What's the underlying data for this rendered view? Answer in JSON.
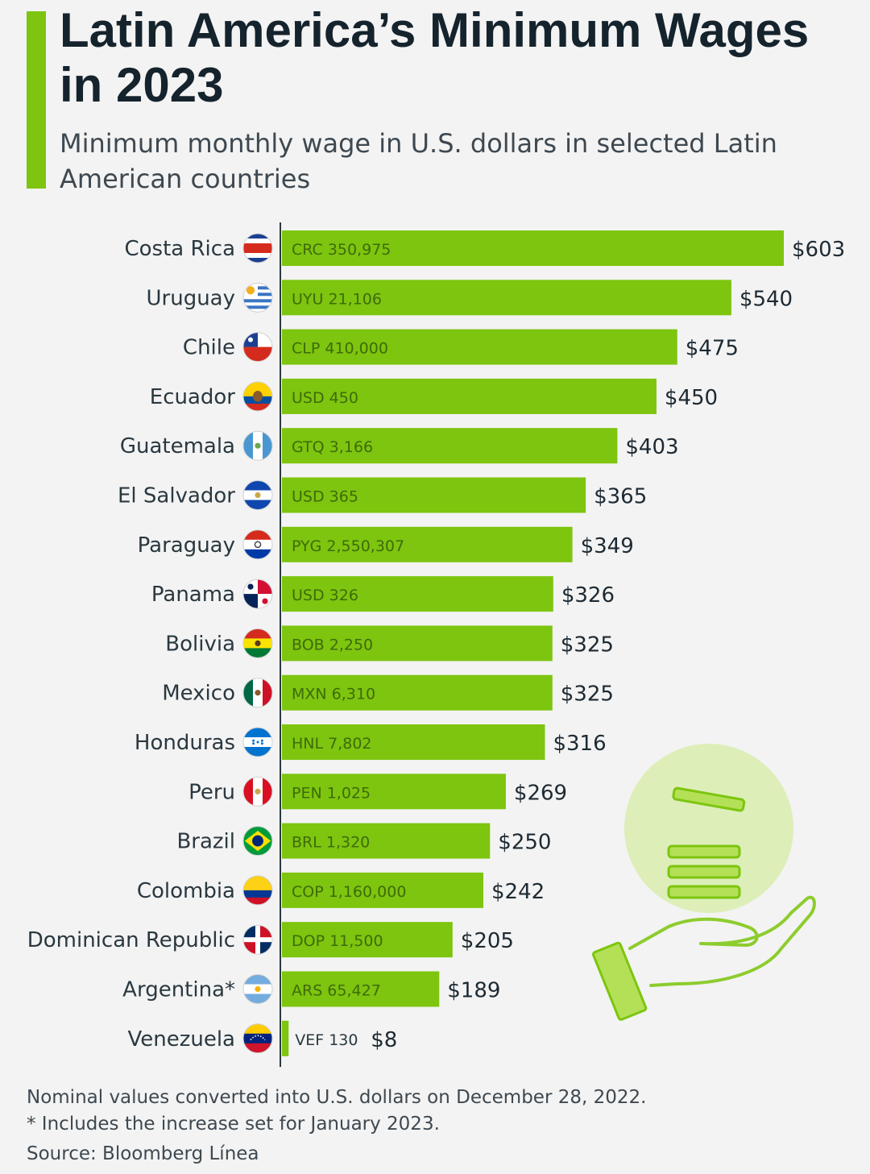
{
  "header": {
    "title": "Latin America’s Minimum Wages in 2023",
    "subtitle": "Minimum monthly wage in U.S. dollars in selected Latin American countries"
  },
  "colors": {
    "accent": "#7dc50f",
    "bar": "#7dc50f",
    "text": "#15232d"
  },
  "chart_data": {
    "type": "bar",
    "orientation": "horizontal",
    "title": "Latin America’s Minimum Wages in 2023",
    "subtitle": "Minimum monthly wage in U.S. dollars in selected Latin American countries",
    "categories": [
      "Costa Rica",
      "Uruguay",
      "Chile",
      "Ecuador",
      "Guatemala",
      "El Salvador",
      "Paraguay",
      "Panama",
      "Bolivia",
      "Mexico",
      "Honduras",
      "Peru",
      "Brazil",
      "Colombia",
      "Dominican Republic",
      "Argentina*",
      "Venezuela"
    ],
    "values": [
      603,
      540,
      475,
      450,
      403,
      365,
      349,
      326,
      325,
      325,
      316,
      269,
      250,
      242,
      205,
      189,
      8
    ],
    "value_labels": [
      "$603",
      "$540",
      "$475",
      "$450",
      "$403",
      "$365",
      "$349",
      "$326",
      "$325",
      "$325",
      "$316",
      "$269",
      "$250",
      "$242",
      "$205",
      "$189",
      "$8"
    ],
    "local_currency_labels": [
      "CRC 350,975",
      "UYU 21,106",
      "CLP 410,000",
      "USD 450",
      "GTQ 3,166",
      "USD 365",
      "PYG 2,550,307",
      "USD 326",
      "BOB 2,250",
      "MXN 6,310",
      "HNL 7,802",
      "PEN 1,025",
      "BRL 1,320",
      "COP 1,160,000",
      "DOP 11,500",
      "ARS 65,427",
      "VEF 130"
    ],
    "flag_icons": [
      "costa-rica-flag-icon",
      "uruguay-flag-icon",
      "chile-flag-icon",
      "ecuador-flag-icon",
      "guatemala-flag-icon",
      "el-salvador-flag-icon",
      "paraguay-flag-icon",
      "panama-flag-icon",
      "bolivia-flag-icon",
      "mexico-flag-icon",
      "honduras-flag-icon",
      "peru-flag-icon",
      "brazil-flag-icon",
      "colombia-flag-icon",
      "dominican-republic-flag-icon",
      "argentina-flag-icon",
      "venezuela-flag-icon"
    ],
    "xlim": [
      0,
      603
    ],
    "grid": false,
    "legend": "none"
  },
  "footer": {
    "note_1": "Nominal values converted into U.S. dollars on December 28, 2022.",
    "note_2": "* Includes the increase set for January 2023.",
    "source": "Source: Bloomberg Línea"
  },
  "decoration": {
    "icon": "hand-holding-coins-icon"
  }
}
